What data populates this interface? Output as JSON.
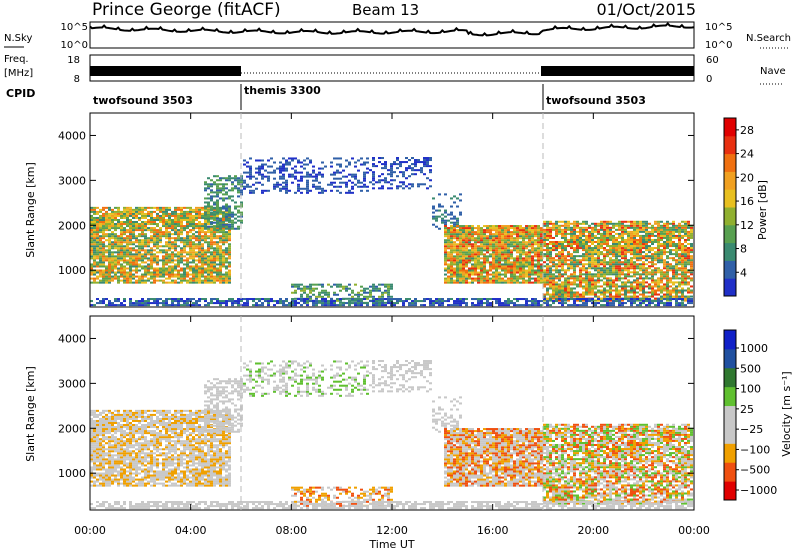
{
  "header": {
    "station": "Prince George (fitACF)",
    "beam": "Beam 13",
    "date": "01/Oct/2015"
  },
  "summary_panels": {
    "nsky_label": "N.Sky",
    "nsky_ticks": [
      "10^5",
      "10^0"
    ],
    "nsearch_label": "N.Search",
    "nsearch_ticks": [
      "10^5",
      "10^0"
    ],
    "freq_label_1": "Freq.",
    "freq_label_2": "[MHz]",
    "freq_ticks": [
      "18",
      "8"
    ],
    "nave_label": "Nave",
    "nave_ticks": [
      "60",
      "0"
    ],
    "cpid_label": "CPID"
  },
  "cpid_segments": [
    {
      "label": "twofsound 3503",
      "start_h": 0,
      "end_h": 6
    },
    {
      "label": "themis 3300",
      "start_h": 6,
      "end_h": 18
    },
    {
      "label": "twofsound 3503",
      "start_h": 18,
      "end_h": 24
    }
  ],
  "colors": {
    "power_scale": [
      "#2030c8",
      "#3060a8",
      "#3a8a70",
      "#58a050",
      "#90b030",
      "#e8c020",
      "#f0a020",
      "#f07010",
      "#e83010",
      "#e00000"
    ],
    "velocity_scale": [
      "#e00000",
      "#f05010",
      "#f0a000",
      "#c8c8c8",
      "#c8c8c8",
      "#60c030",
      "#307830",
      "#2050a0",
      "#1020c8"
    ]
  },
  "chart_data": [
    {
      "type": "heatmap",
      "title": "",
      "xlabel": "Time UT",
      "ylabel": "Slant Range [km]",
      "xlim": [
        0,
        24
      ],
      "ylim": [
        180,
        4500
      ],
      "xticks": [
        "00:00",
        "04:00",
        "08:00",
        "12:00",
        "16:00",
        "20:00",
        "00:00"
      ],
      "yticks": [
        1000,
        2000,
        3000,
        4000
      ],
      "colorbar": {
        "label": "Power [dB]",
        "ticks": [
          4,
          8,
          12,
          16,
          20,
          24,
          28
        ],
        "range": [
          0,
          30
        ]
      }
    },
    {
      "type": "heatmap",
      "title": "",
      "xlabel": "Time UT",
      "ylabel": "Slant Range [km]",
      "xlim": [
        0,
        24
      ],
      "ylim": [
        180,
        4500
      ],
      "xticks": [
        "00:00",
        "04:00",
        "08:00",
        "12:00",
        "16:00",
        "20:00",
        "00:00"
      ],
      "yticks": [
        1000,
        2000,
        3000,
        4000
      ],
      "colorbar": {
        "label": "Velocity [m s⁻¹]",
        "ticks": [
          "1000",
          "500",
          "100",
          "25",
          "−25",
          "−100",
          "−500",
          "−1000"
        ]
      }
    }
  ]
}
